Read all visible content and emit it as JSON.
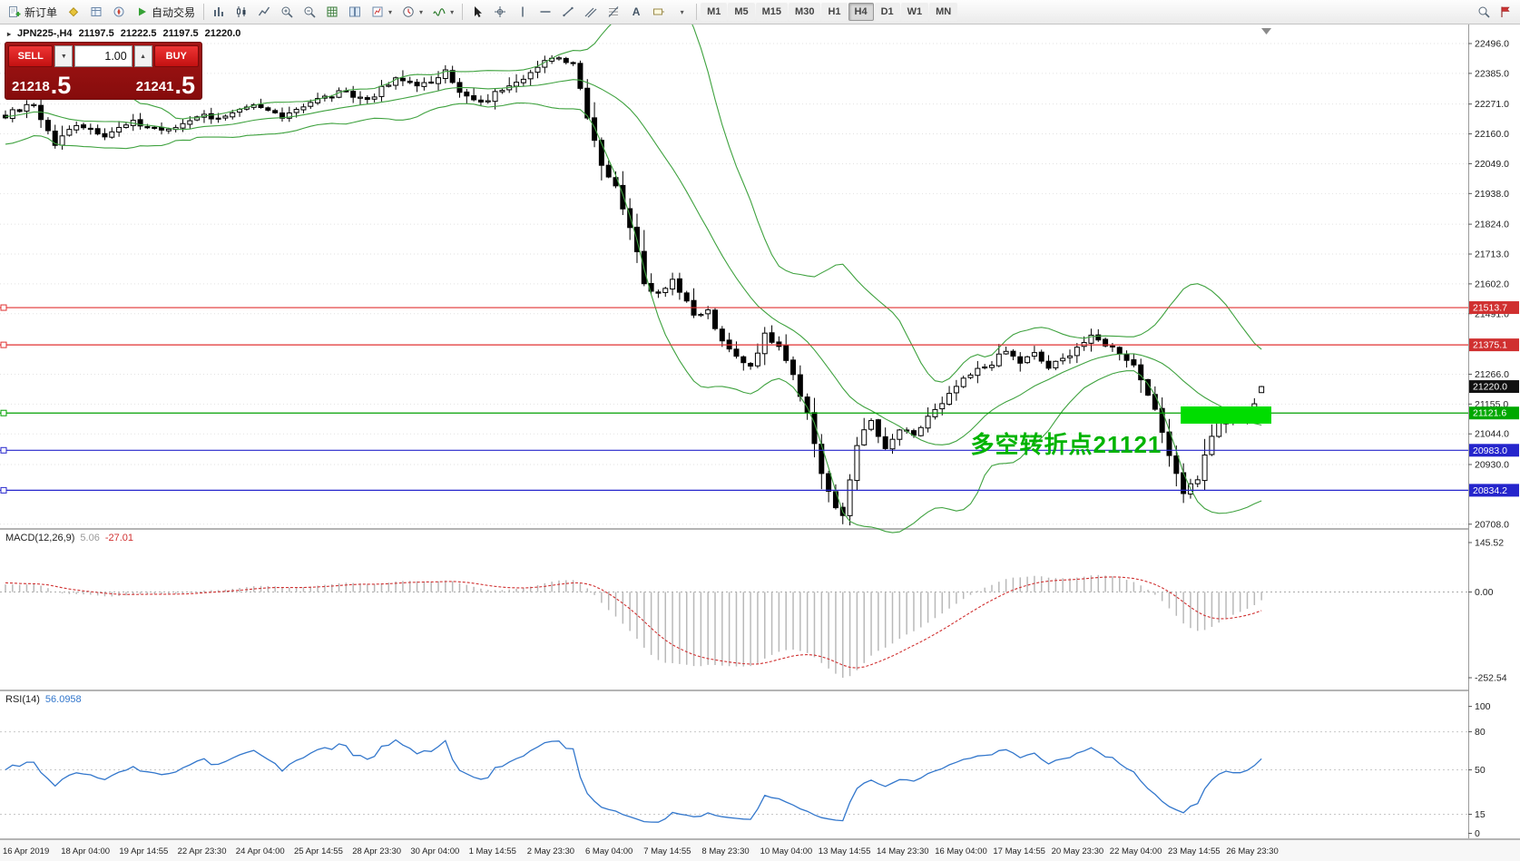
{
  "symbol_line": {
    "symbol": "JPN225-,H4",
    "open": "21197.5",
    "high": "21222.5",
    "low": "21197.5",
    "close": "21220.0"
  },
  "toolbar": {
    "new_order": "新订单",
    "autotrading": "自动交易",
    "text_tool": "A",
    "timeframes": [
      "M1",
      "M5",
      "M15",
      "M30",
      "H1",
      "H4",
      "D1",
      "W1",
      "MN"
    ],
    "active_timeframe": "H4"
  },
  "one_click": {
    "sell_label": "SELL",
    "buy_label": "BUY",
    "volume": "1.00",
    "sell_price": {
      "main": "21218",
      "pip": ".5"
    },
    "buy_price": {
      "main": "21241",
      "pip": ".5"
    }
  },
  "annotation": {
    "text": "多空转折点21121",
    "color": "#00b400",
    "bar": 136,
    "price": 21072
  },
  "indicators": {
    "macd": {
      "label": "MACD(12,26,9)",
      "value_main": "5.06",
      "value_signal": "-27.01",
      "axis": [
        "145.52",
        "0.00",
        "-252.54"
      ]
    },
    "rsi": {
      "label": "RSI(14)",
      "value": "56.0958",
      "axis": [
        "100",
        "80",
        "50",
        "15",
        "0"
      ],
      "levels": [
        80,
        50,
        15
      ]
    }
  },
  "price_axis": {
    "ticks": [
      "22496.0",
      "22385.0",
      "22271.0",
      "22160.0",
      "22049.0",
      "21938.0",
      "21824.0",
      "21713.0",
      "21602.0",
      "21491.0",
      "21266.0",
      "21155.0",
      "21044.0",
      "20930.0",
      "20708.0"
    ],
    "labels": [
      {
        "value": "21513.7",
        "bg": "#d03030"
      },
      {
        "value": "21375.1",
        "bg": "#d03030"
      },
      {
        "value": "21220.0",
        "bg": "#111111"
      },
      {
        "value": "21121.6",
        "bg": "#00a800"
      },
      {
        "value": "20983.0",
        "bg": "#2525cc"
      },
      {
        "value": "20834.2",
        "bg": "#2525cc"
      }
    ]
  },
  "time_axis": {
    "dates": [
      "16 Apr 2019",
      "18 Apr 04:00",
      "19 Apr 14:55",
      "22 Apr 23:30",
      "24 Apr 04:00",
      "25 Apr 14:55",
      "28 Apr 23:30",
      "30 Apr 04:00",
      "1 May 14:55",
      "2 May 23:30",
      "6 May 04:00",
      "7 May 14:55",
      "8 May 23:30",
      "10 May 04:00",
      "13 May 14:55",
      "14 May 23:30",
      "16 May 04:00",
      "17 May 14:55",
      "20 May 23:30",
      "22 May 04:00",
      "23 May 14:55",
      "26 May 23:30"
    ]
  },
  "chart_data": {
    "type": "candlestick",
    "symbol": "JPN225-",
    "timeframe": "H4",
    "ohlc_current": {
      "open": 21197.5,
      "high": 21222.5,
      "low": 21197.5,
      "close": 21220.0
    },
    "bars": 178,
    "price_range_visible": [
      20708,
      22496
    ],
    "price_path_anchors": [
      [
        0,
        22230
      ],
      [
        4,
        22270
      ],
      [
        7,
        22120
      ],
      [
        10,
        22200
      ],
      [
        14,
        22160
      ],
      [
        18,
        22200
      ],
      [
        23,
        22170
      ],
      [
        27,
        22230
      ],
      [
        31,
        22220
      ],
      [
        35,
        22260
      ],
      [
        39,
        22230
      ],
      [
        43,
        22280
      ],
      [
        47,
        22310
      ],
      [
        51,
        22290
      ],
      [
        55,
        22360
      ],
      [
        60,
        22340
      ],
      [
        62,
        22410
      ],
      [
        64,
        22310
      ],
      [
        67,
        22270
      ],
      [
        71,
        22350
      ],
      [
        75,
        22400
      ],
      [
        77,
        22450
      ],
      [
        80,
        22430
      ],
      [
        82,
        22230
      ],
      [
        84,
        22050
      ],
      [
        86,
        21960
      ],
      [
        88,
        21820
      ],
      [
        90,
        21600
      ],
      [
        92,
        21570
      ],
      [
        94,
        21620
      ],
      [
        97,
        21480
      ],
      [
        99,
        21500
      ],
      [
        101,
        21380
      ],
      [
        103,
        21330
      ],
      [
        105,
        21300
      ],
      [
        107,
        21410
      ],
      [
        109,
        21380
      ],
      [
        111,
        21270
      ],
      [
        113,
        21120
      ],
      [
        115,
        20900
      ],
      [
        117,
        20760
      ],
      [
        118,
        20740
      ],
      [
        120,
        21010
      ],
      [
        122,
        21090
      ],
      [
        124,
        20980
      ],
      [
        126,
        21060
      ],
      [
        128,
        21030
      ],
      [
        130,
        21110
      ],
      [
        132,
        21150
      ],
      [
        134,
        21220
      ],
      [
        137,
        21280
      ],
      [
        139,
        21310
      ],
      [
        141,
        21350
      ],
      [
        143,
        21310
      ],
      [
        145,
        21340
      ],
      [
        147,
        21290
      ],
      [
        149,
        21320
      ],
      [
        151,
        21370
      ],
      [
        153,
        21400
      ],
      [
        155,
        21380
      ],
      [
        157,
        21350
      ],
      [
        159,
        21300
      ],
      [
        161,
        21200
      ],
      [
        163,
        21050
      ],
      [
        165,
        20900
      ],
      [
        166,
        20830
      ],
      [
        168,
        20880
      ],
      [
        170,
        21040
      ],
      [
        172,
        21110
      ],
      [
        174,
        21090
      ],
      [
        176,
        21160
      ],
      [
        177,
        21220
      ]
    ],
    "bollinger": {
      "period": 20,
      "deviation": 2,
      "color": "#3fa23f"
    },
    "hlines": [
      {
        "price": 21513.7,
        "color": "#e03232"
      },
      {
        "price": 21375.1,
        "color": "#e03232"
      },
      {
        "price": 21121.6,
        "color": "#00a000"
      },
      {
        "price": 20983.0,
        "color": "#2525cc"
      },
      {
        "price": 20834.2,
        "color": "#2525cc"
      }
    ],
    "highlight_rect": {
      "bar_from": 166,
      "bar_to": 178,
      "price_top": 21146,
      "price_bottom": 21082,
      "color": "#00dd00"
    },
    "macd": {
      "fast": 12,
      "slow": 26,
      "signal_period": 9,
      "main": 5.06,
      "signal": -27.01,
      "axis_max": 145.52,
      "axis_min": -252.54
    },
    "rsi": {
      "period": 14,
      "value": 56.0958
    }
  }
}
